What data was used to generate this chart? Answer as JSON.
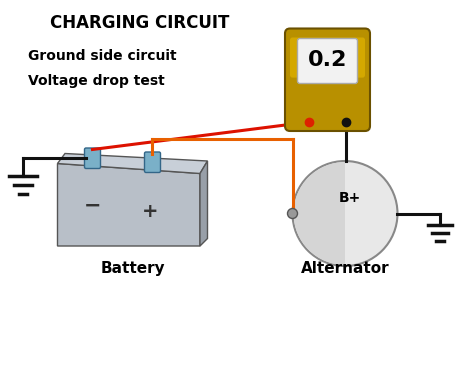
{
  "title": "CHARGING CIRCUIT",
  "subtitle_line1": "Ground side circuit",
  "subtitle_line2": "Voltage drop test",
  "bg_color": "#ffffff",
  "meter_value": "0.2",
  "battery_label": "Battery",
  "alternator_label": "Alternator",
  "bplus_label": "B+",
  "wire_red": "#dd1100",
  "wire_orange": "#e86000",
  "wire_black": "#111111",
  "battery_color_light": "#b8bfc8",
  "battery_color_mid": "#989fa8",
  "battery_color_dark": "#707880",
  "battery_color_top": "#c8cfd8",
  "meter_body_color": "#b89000",
  "meter_screen_color": "#f2f2f2",
  "alt_color_light": "#e8e8e8",
  "alt_color_dark": "#c0c0c0",
  "terminal_color": "#7ab0c8"
}
